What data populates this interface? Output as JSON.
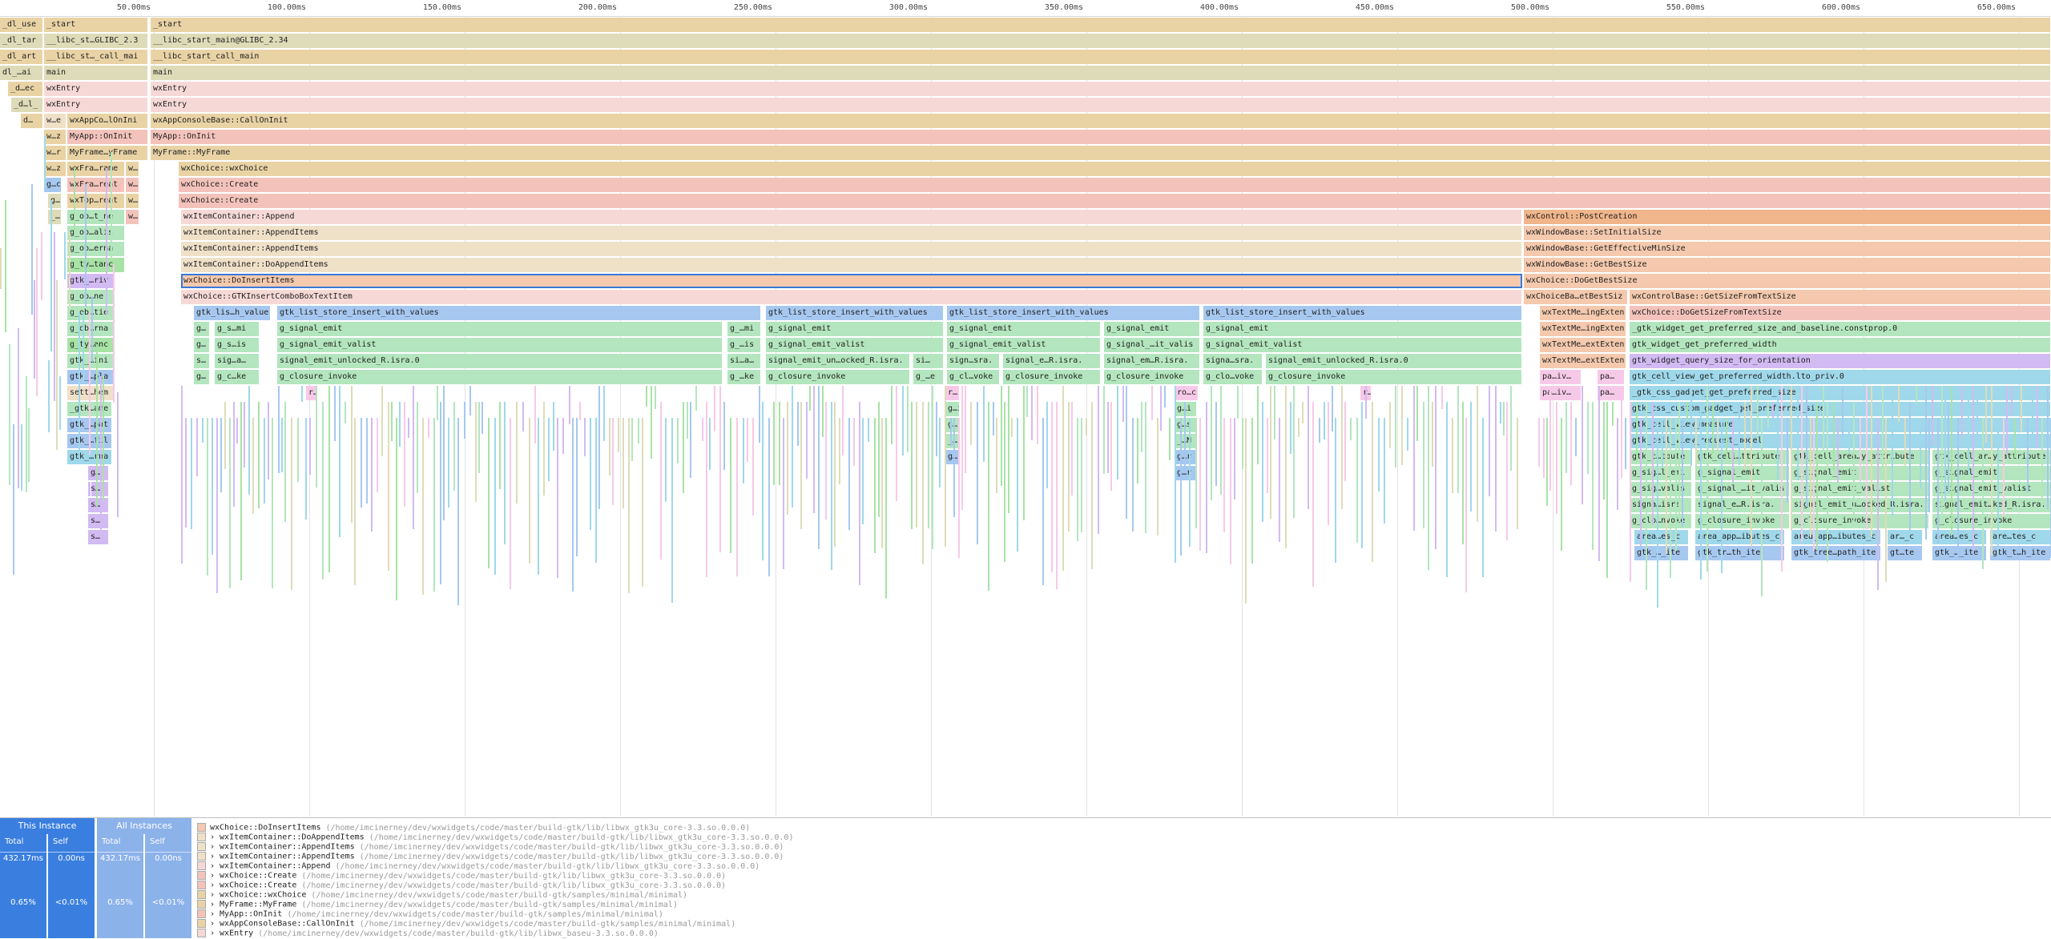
{
  "ruler": [
    "50.00ms",
    "100.00ms",
    "150.00ms",
    "200.00ms",
    "250.00ms",
    "300.00ms",
    "350.00ms",
    "400.00ms",
    "450.00ms",
    "500.00ms",
    "550.00ms",
    "600.00ms",
    "650.00ms"
  ],
  "colors": {
    "rose": "#f6d9d6",
    "rose_dark": "#f3c3bb",
    "tan": "#e9d3a5",
    "olive": "#dedcb8",
    "beige": "#efe0c8",
    "orange": "#f0b58a",
    "peach": "#f4c9ad",
    "green": "#b3e6be",
    "green2": "#a7e3a5",
    "blue": "#a6c8f0",
    "cyan": "#9fd8ea",
    "violet": "#d2baf2",
    "selection": "#3a78d8",
    "tab_active": "#3a7fe0",
    "tab_inactive": "#8cb2ea"
  },
  "frames": {
    "f000": "_dl_use",
    "f001": "_start",
    "f002": "_start",
    "f003": "_dl_tar",
    "f004": "__libc_st…GLIBC_2.3",
    "f005": "__libc_start_main@GLIBC_2.34",
    "f006": "_dl_art",
    "f007": "__libc_st…_call_mai",
    "f008": "__libc_start_call_main",
    "f009": "dl_…ai",
    "f010": "main",
    "f011": "main",
    "f012": "_d…ec",
    "f013": "wxEntry",
    "f014": "wxEntry",
    "f015": "_d…l_",
    "f016": "wxEntry",
    "f017": "wxEntry",
    "f018": "d…",
    "f019": "w…e",
    "f020": "wxAppCo…lOnIni",
    "f021": "wxAppConsoleBase::CallOnInit",
    "f022": "w…z",
    "f023": "MyApp::OnInit",
    "f024": "MyApp::OnInit",
    "f025": "w…r",
    "f026": "MyFrame…yFrame",
    "f027": "MyFrame::MyFrame",
    "f028": "w…z",
    "f029": "wxFra…rame",
    "f030": "w…",
    "f031": "wxChoice::wxChoice",
    "f032": "g…c",
    "f033": "wxFra…reat",
    "f034": "w…",
    "f035": "wxChoice::Create",
    "f036": "g…",
    "f037": "wxTop…reat",
    "f038": "w…",
    "f039": "wxChoice::Create",
    "f040": "_…",
    "f041": "g_ob…t_ne",
    "f042": "w…",
    "f043": "wxItemContainer::Append",
    "f044": "wxControl::PostCreation",
    "f045": "g_ob…alis",
    "f046": "wxItemContainer::AppendItems",
    "f047": "wxWindowBase::SetInitialSize",
    "f048": "g_ob…erna",
    "f049": "wxItemContainer::AppendItems",
    "f050": "wxWindowBase::GetEffectiveMinSize",
    "f051": "g_ty…tanc",
    "f052": "wxItemContainer::DoAppendItems",
    "f053": "wxWindowBase::GetBestSize",
    "f054": "gtk_…riv",
    "f055": "wxChoice::DoInsertItems",
    "f056": "wxChoice::DoGetBestSize",
    "f057": "g_ob…ne",
    "f058": "wxChoice::GTKInsertComboBoxTextItem",
    "f059": "wxChoiceBa…etBestSiz",
    "f060": "wxControlBase::GetSizeFromTextSize",
    "f061": "g_ob…tie",
    "f062": "gtk_lis…h_value",
    "f063": "gtk_list_store_insert_with_values",
    "f064": "gtk_list_store_insert_with_values",
    "f065": "gtk_list_store_insert_with_values",
    "f066": "gtk_list_store_insert_with_values",
    "f067": "wxTextMe…ingExten",
    "f068": "wxChoice::DoGetSizeFromTextSize",
    "f069": "g_ob…rna",
    "f070": "g…",
    "f071": "g_s…mi",
    "f072": "g_signal_emit",
    "f073": "g_…mi",
    "f074": "g_signal_emit",
    "f075": "g_signal_emit",
    "f076": "g_signal_emit",
    "f077": "g_signal_emit",
    "f078": "wxTextMe…ingExten",
    "f079": "_gtk_widget_get_preferred_size_and_baseline.constprop.0",
    "f080": "g_ty…anc",
    "f081": "g…",
    "f082": "g_s…is",
    "f083": "g_signal_emit_valist",
    "f084": "g_…is",
    "f085": "g_signal_emit_valist",
    "f086": "g_signal_emit_valist",
    "f087": "g_signal_…it_valis",
    "f088": "g_signal_emit_valist",
    "f089": "wxTextMe…extExten",
    "f090": "gtk_widget_get_preferred_width",
    "f091": "gtk_…ini",
    "f092": "s…",
    "f093": "sig…a…",
    "f094": "signal_emit_unlocked_R.isra.0",
    "f095": "si…a…",
    "f096": "signal_emit_un…ocked_R.isra.",
    "f097": "si…",
    "f098": "sign…sra.",
    "f099": "signal_e…R.isra.",
    "f100": "signal_em…R.isra.",
    "f101": "signa…sra.",
    "f102": "signal_emit_unlocked_R.isra.0",
    "f103": "wxTextMe…extExten",
    "f104": "gtk_widget_query_size_for_orientation",
    "f105": "gtk_…pla",
    "f106": "g…",
    "f107": "g_c…ke",
    "f108": "g_closure_invoke",
    "f109": "g_…ke",
    "f110": "g_closure_invoke",
    "f111": "g_…e",
    "f112": "g_cl…voke",
    "f113": "g_closure_invoke",
    "f114": "g_closure_invoke",
    "f115": "g_clo…voke",
    "f116": "g_closure_invoke",
    "f117": "pa…iv…",
    "f118": "pa…",
    "f119": "gtk_cell_view_get_preferred_width.lto_priv.0",
    "f120": "sett…hem",
    "f121": "r…",
    "f122": "r…",
    "f123": "ro…c",
    "f124": "r…",
    "f125": "pa…iv…",
    "f126": "pa…",
    "f127": "_gtk_css_gadget_get_preferred_size",
    "f128": "_gtk…ame",
    "f129": "g…i",
    "f130": "g…i",
    "f131": "gtk_css_custom_gadget_get_preferred_size",
    "f132": "gtk_…pat",
    "f133": "g…",
    "f134": "g…s",
    "f135": "gtk_cell_view_measure",
    "f136": "gtk_…fil",
    "f137": "_…",
    "f138": "_…N",
    "f139": "gtk_cell_view_request_model",
    "f140": "gtk_…rna",
    "f141": "g…",
    "f142": "g…r",
    "f143": "gtk_c…tbute",
    "f144": "gtk_cell…ttribute",
    "f145": "gtk_cell_area…y_attribute",
    "f146": "gtk_cell_ar…y_attribute",
    "f147": "g…",
    "f148": "g…r",
    "f149": "g_sig…l_emi",
    "f150": "g_signal_emit",
    "f151": "g_signal_emit",
    "f152": "g_signal_emit",
    "f153": "g_sig…valis",
    "f154": "g_signal_…it_valis",
    "f155": "g_signal_emit_valist",
    "f156": "g_signal_emit_valist",
    "f157": "signa…isra.",
    "f158": "signal_e…R.isra.",
    "f159": "signal_emit_u…ocked_R.isra.",
    "f160": "signal_emit…ked_R.isra.",
    "f161": "g_clo…nvoke",
    "f162": "g_closure_invoke",
    "f163": "g_closure_invoke",
    "f164": "g_closure_invoke",
    "f165": "area…es_c",
    "f166": "area_app…ibutes_c",
    "f167": "area_app…ibutes_c",
    "f168": "ar…_c",
    "f169": "area…es_c",
    "f170": "are…tes_c",
    "f171": "gtk_…_ite",
    "f172": "gtk_tr…th_ite",
    "f173": "gtk_tree…path_ite",
    "f174": "gt…te",
    "f175": "gtk_…_ite",
    "f176": "gtk_t…h_ite",
    "f177": "g…",
    "f178": "s…",
    "f179": "s…",
    "f180": "s…",
    "f181": "s…"
  },
  "bottom": {
    "this_instance": "This Instance",
    "all_instances": "All Instances",
    "total": "Total",
    "self": "Self",
    "this_total_time": "432.17ms",
    "this_self_time": "0.00ns",
    "all_total_time": "432.17ms",
    "all_self_time": "0.00ns",
    "this_total_pct": "0.65%",
    "this_self_pct": "<0.01%",
    "all_total_pct": "0.65%",
    "all_self_pct": "<0.01%"
  },
  "stack": [
    {
      "fn": "wxChoice::DoInsertItems",
      "path": "(/home/imcinerney/dev/wxwidgets/code/master/build-gtk/lib/libwx_gtk3u_core-3.3.so.0.0.0)"
    },
    {
      "fn": "› wxItemContainer::DoAppendItems",
      "path": "(/home/imcinerney/dev/wxwidgets/code/master/build-gtk/lib/libwx_gtk3u_core-3.3.so.0.0.0)"
    },
    {
      "fn": "› wxItemContainer::AppendItems",
      "path": "(/home/imcinerney/dev/wxwidgets/code/master/build-gtk/lib/libwx_gtk3u_core-3.3.so.0.0.0)"
    },
    {
      "fn": "› wxItemContainer::AppendItems",
      "path": "(/home/imcinerney/dev/wxwidgets/code/master/build-gtk/lib/libwx_gtk3u_core-3.3.so.0.0.0)"
    },
    {
      "fn": "› wxItemContainer::Append",
      "path": "(/home/imcinerney/dev/wxwidgets/code/master/build-gtk/lib/libwx_gtk3u_core-3.3.so.0.0.0)"
    },
    {
      "fn": "› wxChoice::Create",
      "path": "(/home/imcinerney/dev/wxwidgets/code/master/build-gtk/lib/libwx_gtk3u_core-3.3.so.0.0.0)"
    },
    {
      "fn": "› wxChoice::Create",
      "path": "(/home/imcinerney/dev/wxwidgets/code/master/build-gtk/lib/libwx_gtk3u_core-3.3.so.0.0.0)"
    },
    {
      "fn": "› wxChoice::wxChoice",
      "path": "(/home/imcinerney/dev/wxwidgets/code/master/build-gtk/samples/minimal/minimal)"
    },
    {
      "fn": "› MyFrame::MyFrame",
      "path": "(/home/imcinerney/dev/wxwidgets/code/master/build-gtk/samples/minimal/minimal)"
    },
    {
      "fn": "› MyApp::OnInit",
      "path": "(/home/imcinerney/dev/wxwidgets/code/master/build-gtk/samples/minimal/minimal)"
    },
    {
      "fn": "› wxAppConsoleBase::CallOnInit",
      "path": "(/home/imcinerney/dev/wxwidgets/code/master/build-gtk/samples/minimal/minimal)"
    },
    {
      "fn": "› wxEntry",
      "path": "(/home/imcinerney/dev/wxwidgets/code/master/build-gtk/lib/libwx_baseu-3.3.so.0.0.0)"
    }
  ]
}
